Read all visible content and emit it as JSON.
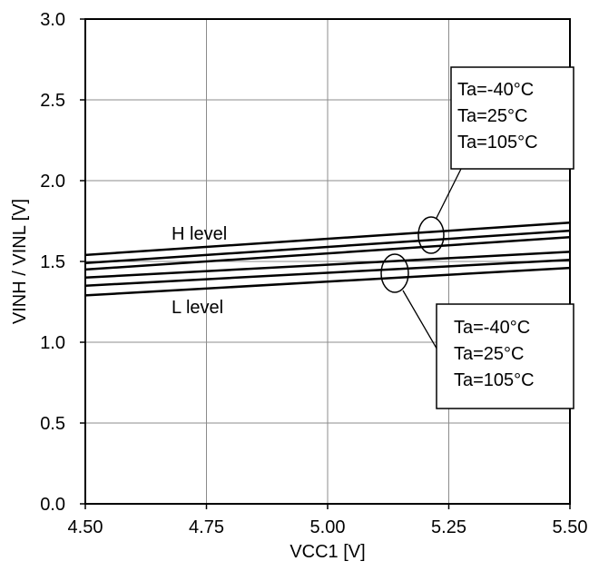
{
  "chart_data": {
    "type": "line",
    "xlabel": "VCC1 [V]",
    "ylabel": "VINH / VINL [V]",
    "xlim": [
      4.5,
      5.5
    ],
    "ylim": [
      0.0,
      3.0
    ],
    "x_ticks": [
      "4.50",
      "4.75",
      "5.00",
      "5.25",
      "5.50"
    ],
    "y_ticks": [
      "0.0",
      "0.5",
      "1.0",
      "1.5",
      "2.0",
      "2.5",
      "3.0"
    ],
    "grid": true,
    "series": [
      {
        "x": [
          4.5,
          5.5
        ],
        "y": [
          1.54,
          1.74
        ]
      },
      {
        "x": [
          4.5,
          5.5
        ],
        "y": [
          1.49,
          1.69
        ]
      },
      {
        "x": [
          4.5,
          5.5
        ],
        "y": [
          1.45,
          1.65
        ]
      },
      {
        "x": [
          4.5,
          5.5
        ],
        "y": [
          1.4,
          1.56
        ]
      },
      {
        "x": [
          4.5,
          5.5
        ],
        "y": [
          1.35,
          1.51
        ]
      },
      {
        "x": [
          4.5,
          5.5
        ],
        "y": [
          1.29,
          1.46
        ]
      }
    ],
    "annotations": {
      "h_level": "H level",
      "l_level": "L level",
      "legend_upper": [
        "Ta=-40°C",
        "Ta=25°C",
        "Ta=105°C"
      ],
      "legend_lower": [
        "Ta=-40°C",
        "Ta=25°C",
        "Ta=105°C"
      ]
    }
  }
}
